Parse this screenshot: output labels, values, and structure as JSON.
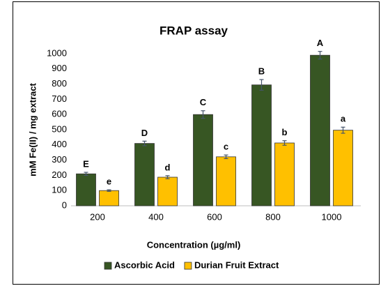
{
  "chart_data": {
    "type": "bar",
    "title": "FRAP assay",
    "xlabel": "Concentration (µg/ml)",
    "ylabel": "mM Fe(II) / mg extract",
    "categories": [
      "200",
      "400",
      "600",
      "800",
      "1000"
    ],
    "series": [
      {
        "name": "Ascorbic Acid",
        "color": "#375623",
        "values": [
          210,
          410,
          600,
          795,
          990
        ],
        "errors": [
          10,
          15,
          25,
          35,
          25
        ],
        "labels": [
          "E",
          "D",
          "C",
          "B",
          "A"
        ]
      },
      {
        "name": "Durian Fruit Extract",
        "color": "#ffc000",
        "values": [
          100,
          188,
          322,
          413,
          497
        ],
        "errors": [
          5,
          10,
          12,
          15,
          20
        ],
        "labels": [
          "e",
          "d",
          "c",
          "b",
          "a"
        ]
      }
    ],
    "ylim": [
      0,
      1000
    ],
    "yticks": [
      0,
      100,
      200,
      300,
      400,
      500,
      600,
      700,
      800,
      900,
      1000
    ],
    "grid": false,
    "legend": "bottom"
  }
}
